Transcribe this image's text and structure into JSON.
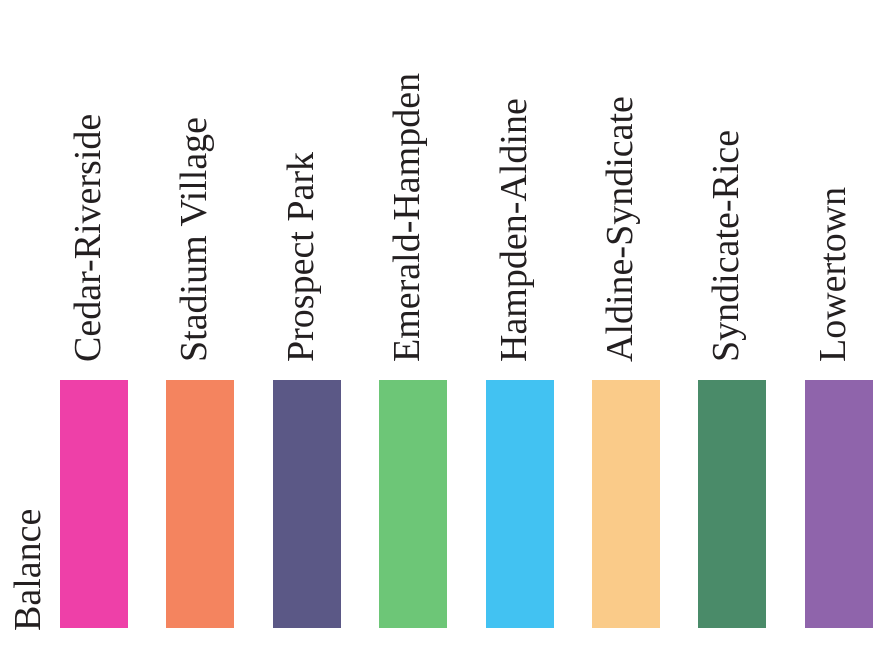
{
  "legend": {
    "row_label": "Balance",
    "items": [
      {
        "label": "Cedar-Riverside",
        "color": "#ee40a8"
      },
      {
        "label": "Stadium Village",
        "color": "#f4845f"
      },
      {
        "label": "Prospect Park",
        "color": "#5b5886"
      },
      {
        "label": "Emerald-Hampden",
        "color": "#6dc677"
      },
      {
        "label": "Hampden-Aldine",
        "color": "#42c2f2"
      },
      {
        "label": "Aldine-Syndicate",
        "color": "#facb89"
      },
      {
        "label": "Syndicate-Rice",
        "color": "#4a8b69"
      },
      {
        "label": "Lowertown",
        "color": "#8f64ab"
      }
    ]
  }
}
